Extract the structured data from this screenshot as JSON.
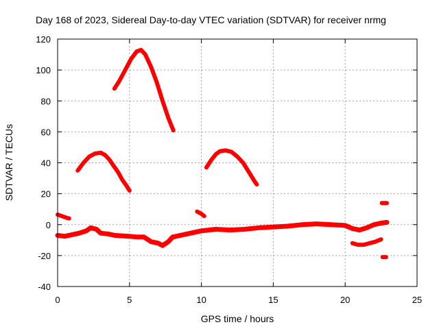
{
  "chart_data": {
    "type": "line",
    "title": "Day 168 of 2023, Sidereal Day-to-day VTEC variation (SDTVAR) for receiver nrmg",
    "xlabel": "GPS time / hours",
    "ylabel": "SDTVAR / TECUs",
    "xlim": [
      0,
      25
    ],
    "ylim": [
      -40,
      120
    ],
    "xticks": [
      0,
      5,
      10,
      15,
      20,
      25
    ],
    "yticks": [
      -40,
      -20,
      0,
      20,
      40,
      60,
      80,
      100,
      120
    ],
    "grid": true,
    "color": "#ff0000",
    "series": [
      {
        "name": "arc-high-peak",
        "x": [
          3.95,
          4.3,
          4.7,
          5.1,
          5.5,
          5.8,
          6.1,
          6.5,
          6.9,
          7.3,
          7.7,
          8.05
        ],
        "y": [
          88,
          93,
          100,
          107,
          112,
          113,
          110,
          102,
          92,
          80,
          69,
          61
        ]
      },
      {
        "name": "arc-morning",
        "x": [
          1.4,
          1.8,
          2.2,
          2.6,
          3.0,
          3.3,
          3.6,
          3.9,
          4.2,
          4.5,
          4.8,
          5.0
        ],
        "y": [
          35,
          40,
          44,
          46,
          46.5,
          45,
          42,
          38,
          34,
          29,
          25,
          22
        ]
      },
      {
        "name": "arc-midday",
        "x": [
          10.35,
          10.7,
          11.0,
          11.3,
          11.7,
          12.1,
          12.5,
          12.9,
          13.3,
          13.7,
          13.85
        ],
        "y": [
          37,
          42,
          45.5,
          47.5,
          48,
          47,
          44,
          40,
          34,
          28,
          26
        ]
      },
      {
        "name": "baseline",
        "x": [
          0,
          0.5,
          1.0,
          1.5,
          2.0,
          2.3,
          2.7,
          3.0,
          3.5,
          4.0,
          5.0,
          5.5,
          6.0,
          6.5,
          7.0,
          7.3,
          7.7,
          8.0,
          9.0,
          10.0,
          11.0,
          12.0,
          13.0,
          14.0,
          15.0,
          16.0,
          17.0,
          18.0,
          19.0,
          20.0,
          20.5,
          21.0,
          21.5,
          22.0,
          22.5,
          22.9
        ],
        "y": [
          -7,
          -7.5,
          -6.5,
          -5.5,
          -4,
          -2,
          -3,
          -5.5,
          -6,
          -7,
          -7.5,
          -8,
          -8,
          -11,
          -12,
          -13.5,
          -11,
          -8,
          -6,
          -4,
          -3,
          -3.5,
          -3,
          -2,
          -1.5,
          -1,
          0,
          0.5,
          0,
          -0.5,
          -2.5,
          -3.5,
          -2,
          0,
          1,
          1.5
        ]
      },
      {
        "name": "segment-start",
        "x": [
          0,
          0.3,
          0.6,
          0.8
        ],
        "y": [
          6.5,
          5.5,
          4.5,
          4
        ]
      },
      {
        "name": "segment-10h",
        "x": [
          9.7,
          10.0,
          10.2
        ],
        "y": [
          8.5,
          7,
          5.5
        ]
      },
      {
        "name": "segment-21h",
        "x": [
          20.5,
          20.9,
          21.3,
          21.7,
          22.1,
          22.5
        ],
        "y": [
          -12,
          -13,
          -13,
          -12,
          -11,
          -9.5
        ]
      },
      {
        "name": "segment-22h8-high",
        "x": [
          22.55,
          22.9
        ],
        "y": [
          14,
          14
        ]
      },
      {
        "name": "segment-22h8-low",
        "x": [
          22.6,
          22.85
        ],
        "y": [
          -21,
          -21
        ]
      }
    ]
  }
}
